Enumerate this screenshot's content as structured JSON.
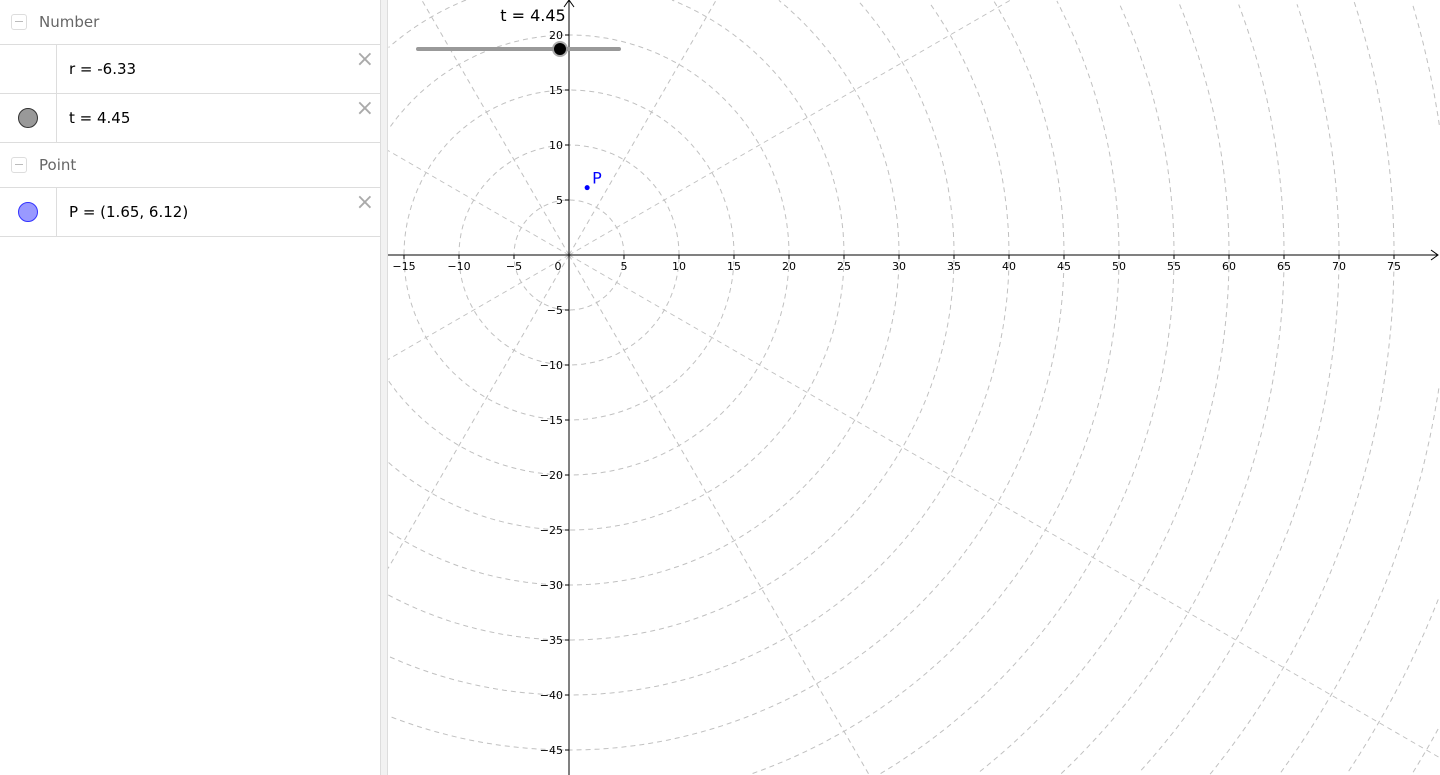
{
  "algebra": {
    "groups": [
      {
        "label": "Number"
      },
      {
        "label": "Point"
      }
    ],
    "items": [
      {
        "expr": "r = -6.33",
        "marble": "none"
      },
      {
        "expr": "t = 4.45",
        "marble": "#999999"
      },
      {
        "expr": "P = (1.65, 6.12)",
        "marble": "#9999ff"
      }
    ],
    "close_glyph": "×"
  },
  "graphics": {
    "slider": {
      "label": "t = 4.45",
      "value": 4.45
    },
    "point": {
      "label": "P",
      "x": 1.65,
      "y": 6.12,
      "color": "#0000ff"
    },
    "grid": "polar",
    "grid_radial_step_units": 5,
    "grid_angle_step_degrees": 30,
    "x_ticks": [
      "−15",
      "−10",
      "−5",
      "0",
      "5",
      "10",
      "15",
      "20",
      "25",
      "30",
      "35",
      "40",
      "45",
      "50",
      "55",
      "60",
      "65",
      "70",
      "75"
    ],
    "y_ticks": [
      "20",
      "15",
      "10",
      "5",
      "−5",
      "−10",
      "−15",
      "−20",
      "−25",
      "−30",
      "−35",
      "−40",
      "−45"
    ]
  }
}
